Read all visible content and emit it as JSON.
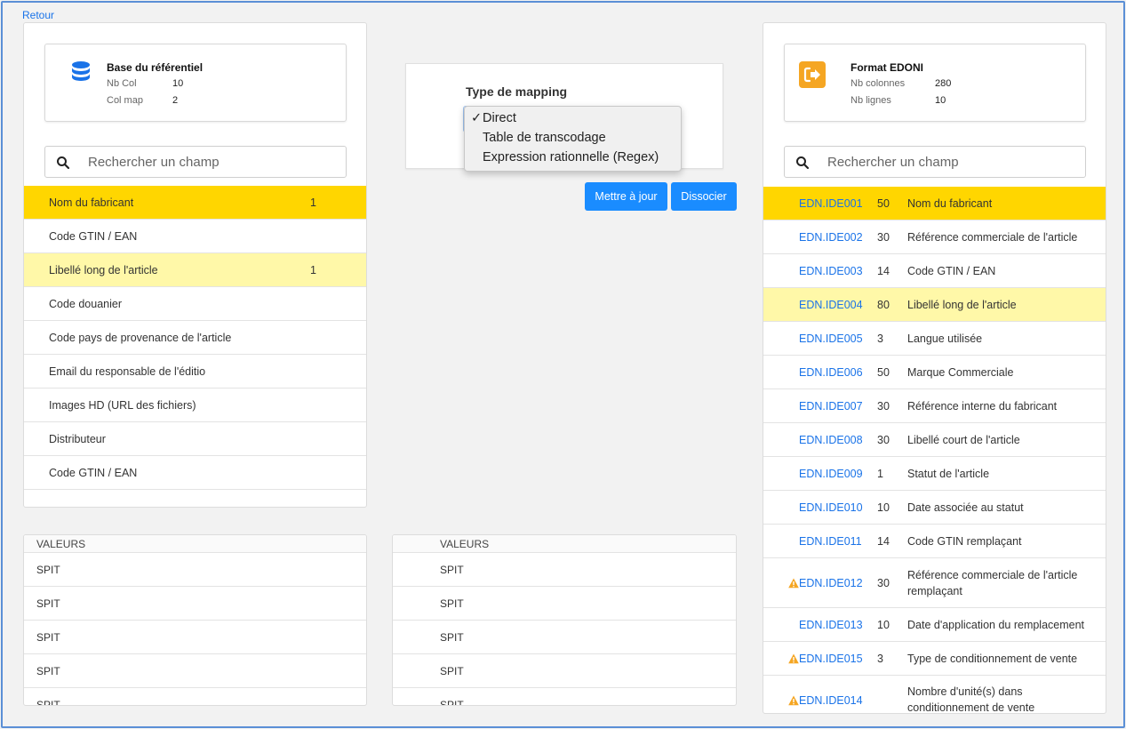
{
  "nav": {
    "back": "Retour"
  },
  "left": {
    "card": {
      "title": "Base du référentiel",
      "rows": [
        {
          "label": "Nb Col",
          "value": "10"
        },
        {
          "label": "Col map",
          "value": "2"
        }
      ]
    },
    "search_placeholder": "Rechercher un champ",
    "items": [
      {
        "label": "Nom du fabricant",
        "count": "1"
      },
      {
        "label": "Code GTIN / EAN",
        "count": ""
      },
      {
        "label": "Libellé long de l'article",
        "count": "1"
      },
      {
        "label": "Code douanier",
        "count": ""
      },
      {
        "label": "Code pays de provenance de l'article",
        "count": ""
      },
      {
        "label": "Email du responsable de l'éditio",
        "count": ""
      },
      {
        "label": "Images HD (URL des fichiers)",
        "count": ""
      },
      {
        "label": "Distributeur",
        "count": ""
      },
      {
        "label": "Code GTIN / EAN",
        "count": ""
      }
    ]
  },
  "mapping": {
    "title": "Type de mapping",
    "selected": "Direct",
    "check_mark": "✓",
    "options": [
      "Direct",
      "Table de transcodage",
      "Expression rationnelle (Regex)"
    ],
    "update_button": "Mettre à jour",
    "dissociate_button": "Dissocier"
  },
  "right": {
    "card": {
      "title": "Format EDONI",
      "rows": [
        {
          "label": "Nb colonnes",
          "value": "280"
        },
        {
          "label": "Nb lignes",
          "value": "10"
        }
      ]
    },
    "search_placeholder": "Rechercher un champ",
    "items": [
      {
        "code": "EDN.IDE001",
        "len": "50",
        "desc": "Nom du fabricant"
      },
      {
        "code": "EDN.IDE002",
        "len": "30",
        "desc": "Référence commerciale de l'article"
      },
      {
        "code": "EDN.IDE003",
        "len": "14",
        "desc": "Code GTIN / EAN"
      },
      {
        "code": "EDN.IDE004",
        "len": "80",
        "desc": "Libellé long de l'article"
      },
      {
        "code": "EDN.IDE005",
        "len": "3",
        "desc": "Langue utilisée"
      },
      {
        "code": "EDN.IDE006",
        "len": "50",
        "desc": "Marque Commerciale"
      },
      {
        "code": "EDN.IDE007",
        "len": "30",
        "desc": "Référence interne du fabricant"
      },
      {
        "code": "EDN.IDE008",
        "len": "30",
        "desc": "Libellé court de l'article"
      },
      {
        "code": "EDN.IDE009",
        "len": "1",
        "desc": "Statut de l'article"
      },
      {
        "code": "EDN.IDE010",
        "len": "10",
        "desc": "Date associée au statut"
      },
      {
        "code": "EDN.IDE011",
        "len": "14",
        "desc": "Code GTIN remplaçant"
      },
      {
        "code": "EDN.IDE012",
        "len": "30",
        "desc": "Référence commerciale de l'article remplaçant"
      },
      {
        "code": "EDN.IDE013",
        "len": "10",
        "desc": "Date d'application du remplacement"
      },
      {
        "code": "EDN.IDE015",
        "len": "3",
        "desc": "Type de conditionnement de vente"
      },
      {
        "code": "EDN.IDE014",
        "len": "",
        "desc": "Nombre d'unité(s) dans conditionnement de vente"
      }
    ]
  },
  "values_left": {
    "header": "VALEURS",
    "rows": [
      "SPIT",
      "SPIT",
      "SPIT",
      "SPIT",
      "SPIT"
    ]
  },
  "values_mid": {
    "header": "VALEURS",
    "rows": [
      "SPIT",
      "SPIT",
      "SPIT",
      "SPIT",
      "SPIT"
    ]
  },
  "colors": {
    "selected": "#ffd600",
    "highlight": "#fff8a8",
    "link": "#1a73e8",
    "button": "#1a8cff",
    "warning": "#f5a623",
    "db_icon": "#1a73e8",
    "edoni_icon": "#f5a623"
  }
}
